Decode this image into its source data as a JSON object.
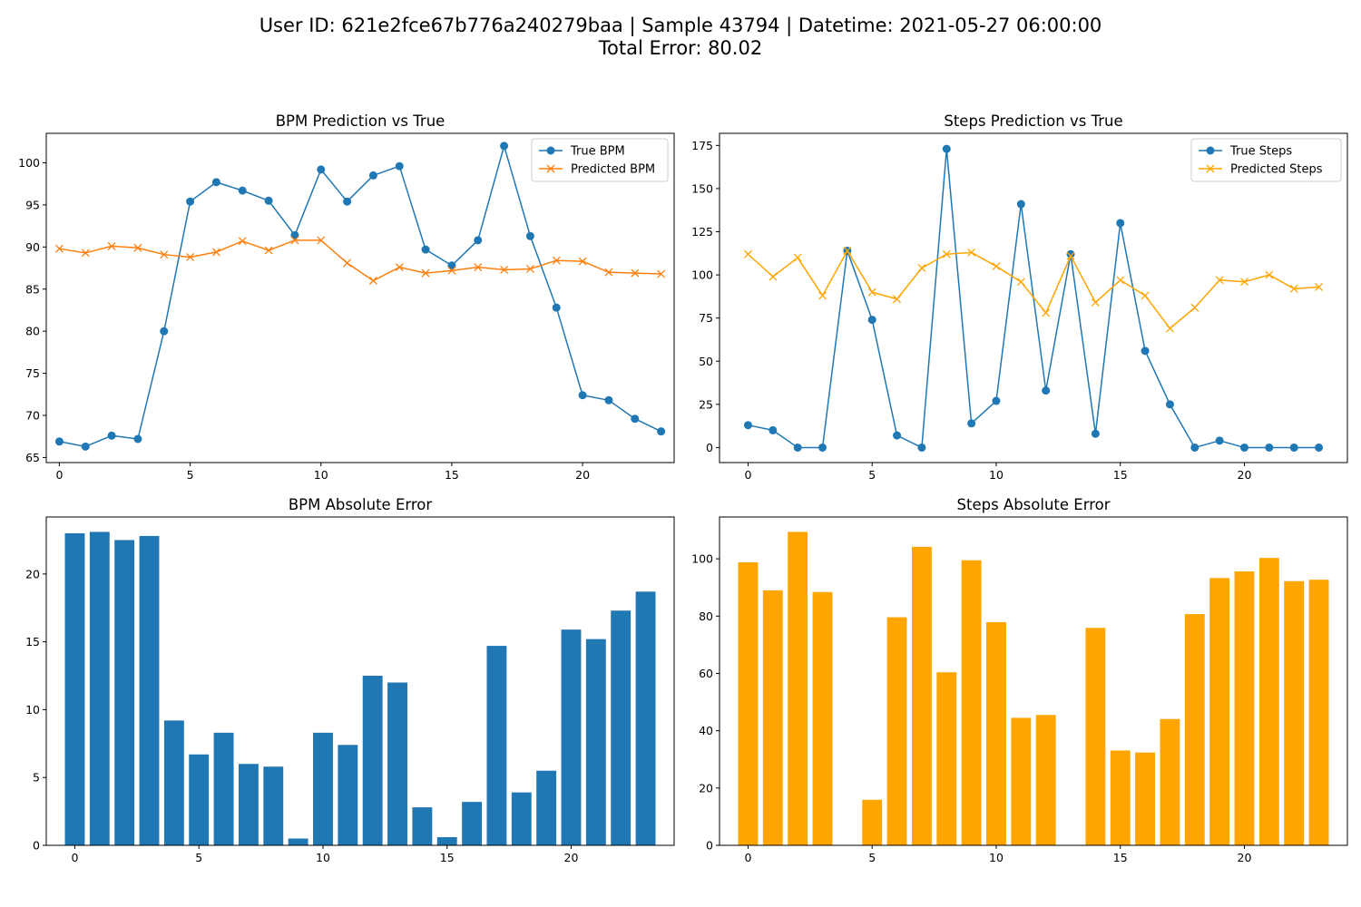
{
  "suptitle": {
    "line1": "User ID: 621e2fce67b776a240279baa | Sample 43794 | Datetime: 2021-05-27 06:00:00",
    "line2": "Total Error: 80.02"
  },
  "chart_data": [
    {
      "id": "bpm_line",
      "type": "line",
      "title": "BPM Prediction vs True",
      "x": [
        0,
        1,
        2,
        3,
        4,
        5,
        6,
        7,
        8,
        9,
        10,
        11,
        12,
        13,
        14,
        15,
        16,
        17,
        18,
        19,
        20,
        21,
        22,
        23
      ],
      "xlim": [
        -0.5,
        23.5
      ],
      "ylim": [
        64.4,
        103.5
      ],
      "xticks": [
        0,
        5,
        10,
        15,
        20
      ],
      "yticks": [
        65,
        70,
        75,
        80,
        85,
        90,
        95,
        100
      ],
      "legend_position": "upper right",
      "grid": false,
      "series": [
        {
          "name": "True BPM",
          "color": "#1f77b4",
          "marker": "circle",
          "values": [
            66.9,
            66.3,
            67.6,
            67.2,
            80.0,
            95.4,
            97.7,
            96.7,
            95.5,
            91.4,
            99.2,
            95.4,
            98.5,
            99.6,
            89.7,
            87.8,
            90.8,
            102.0,
            91.3,
            82.8,
            72.4,
            71.8,
            69.6,
            68.1
          ]
        },
        {
          "name": "Predicted BPM",
          "color": "#ff7f0e",
          "marker": "x",
          "values": [
            89.8,
            89.3,
            90.1,
            89.9,
            89.1,
            88.8,
            89.4,
            90.7,
            89.6,
            90.8,
            90.8,
            88.1,
            86.0,
            87.6,
            86.9,
            87.2,
            87.6,
            87.3,
            87.4,
            88.4,
            88.3,
            87.0,
            86.9,
            86.8
          ]
        }
      ]
    },
    {
      "id": "steps_line",
      "type": "line",
      "title": "Steps Prediction vs True",
      "x": [
        0,
        1,
        2,
        3,
        4,
        5,
        6,
        7,
        8,
        9,
        10,
        11,
        12,
        13,
        14,
        15,
        16,
        17,
        18,
        19,
        20,
        21,
        22,
        23
      ],
      "xlim": [
        -1.15,
        24.15
      ],
      "ylim": [
        -8.7,
        182
      ],
      "xticks": [
        0,
        5,
        10,
        15,
        20
      ],
      "yticks": [
        0,
        25,
        50,
        75,
        100,
        125,
        150,
        175
      ],
      "legend_position": "upper right",
      "grid": false,
      "series": [
        {
          "name": "True Steps",
          "color": "#1f77b4",
          "marker": "circle",
          "values": [
            13,
            10,
            0,
            0,
            114,
            74,
            7,
            0,
            173,
            14,
            27,
            141,
            33,
            112,
            8,
            130,
            56,
            25,
            0,
            4,
            0,
            0,
            0,
            0
          ]
        },
        {
          "name": "Predicted Steps",
          "color": "#ffa500",
          "marker": "x",
          "values": [
            112,
            99,
            110,
            88,
            114,
            90,
            86,
            104,
            112,
            113,
            105,
            96,
            78,
            111,
            84,
            97,
            88,
            69,
            81,
            97,
            96,
            100,
            92,
            93
          ]
        }
      ]
    },
    {
      "id": "bpm_err",
      "type": "bar",
      "title": "BPM Absolute Error",
      "x": [
        0,
        1,
        2,
        3,
        4,
        5,
        6,
        7,
        8,
        9,
        10,
        11,
        12,
        13,
        14,
        15,
        16,
        17,
        18,
        19,
        20,
        21,
        22,
        23
      ],
      "xlim": [
        -1.15,
        24.15
      ],
      "ylim": [
        0,
        24.2
      ],
      "xticks": [
        0,
        5,
        10,
        15,
        20
      ],
      "yticks": [
        0,
        5,
        10,
        15,
        20
      ],
      "color": "#1f77b4",
      "values": [
        23.0,
        23.1,
        22.5,
        22.8,
        9.2,
        6.7,
        8.3,
        6.0,
        5.8,
        0.5,
        8.3,
        7.4,
        12.5,
        12.0,
        2.8,
        0.6,
        3.2,
        14.7,
        3.9,
        5.5,
        15.9,
        15.2,
        17.3,
        18.7
      ]
    },
    {
      "id": "steps_err",
      "type": "bar",
      "title": "Steps Absolute Error",
      "x": [
        0,
        1,
        2,
        3,
        4,
        5,
        6,
        7,
        8,
        9,
        10,
        11,
        12,
        13,
        14,
        15,
        16,
        17,
        18,
        19,
        20,
        21,
        22,
        23
      ],
      "xlim": [
        -1.15,
        24.15
      ],
      "ylim": [
        0,
        114.6
      ],
      "xticks": [
        0,
        5,
        10,
        15,
        20
      ],
      "yticks": [
        0,
        20,
        40,
        60,
        80,
        100
      ],
      "color": "#ffa500",
      "values": [
        98.8,
        89.0,
        109.4,
        88.4,
        0,
        15.9,
        79.6,
        104.2,
        60.4,
        99.5,
        77.9,
        44.5,
        45.5,
        0,
        75.9,
        33.1,
        32.4,
        44.1,
        80.7,
        93.3,
        95.6,
        100.3,
        92.2,
        92.7
      ]
    }
  ]
}
